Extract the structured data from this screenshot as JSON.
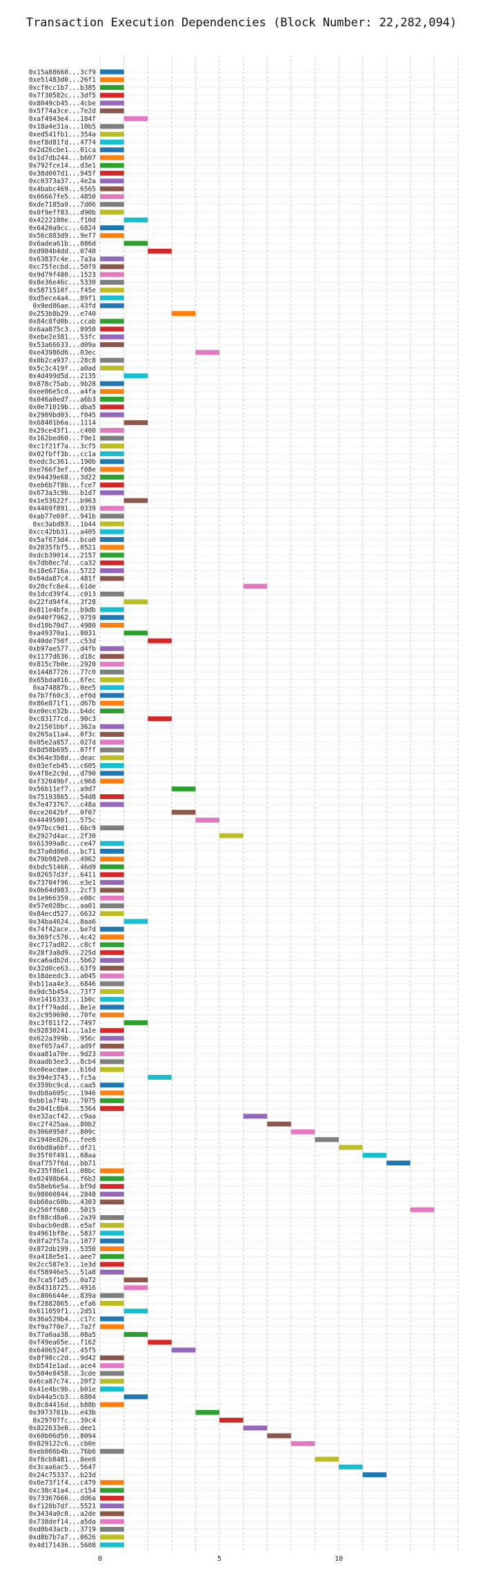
{
  "chart_data": {
    "type": "bar",
    "title": "Transaction Execution Dependencies (Block Number: 22,282,094)",
    "xlabel": "",
    "ylabel": "",
    "xlim": [
      -1,
      15
    ],
    "xticks": [
      0,
      5,
      10
    ],
    "grid": true,
    "legend": "none",
    "palette": [
      "#1f77b4",
      "#ff7f0e",
      "#2ca02c",
      "#d62728",
      "#9467bd",
      "#8c564b",
      "#e377c2",
      "#7f7f7f",
      "#bcbd22",
      "#17becf"
    ],
    "rows": [
      {
        "label": "0x15a88660...3cf9",
        "start": 0,
        "end": 1
      },
      {
        "label": "0xe51483d0...26f1",
        "start": 0,
        "end": 1
      },
      {
        "label": "0xcf0cc1b7...b385",
        "start": 0,
        "end": 1
      },
      {
        "label": "0x7f30582c...3df5",
        "start": 0,
        "end": 1
      },
      {
        "label": "0x8049cb45...4cbe",
        "start": 0,
        "end": 1
      },
      {
        "label": "0x5f74a3ce...7e2d",
        "start": 0,
        "end": 1
      },
      {
        "label": "0xaf4943e4...184f",
        "start": 1,
        "end": 2
      },
      {
        "label": "0x18a4e31a...10b5",
        "start": 0,
        "end": 1
      },
      {
        "label": "0xed541fb1...354a",
        "start": 0,
        "end": 1
      },
      {
        "label": "0xef8d81fd...4774",
        "start": 0,
        "end": 1
      },
      {
        "label": "0x2d26cbe1...01ca",
        "start": 0,
        "end": 1
      },
      {
        "label": "0x1d7db244...b607",
        "start": 0,
        "end": 1
      },
      {
        "label": "0x792fce14...d3e1",
        "start": 0,
        "end": 1
      },
      {
        "label": "0x38d007d1...945f",
        "start": 0,
        "end": 1
      },
      {
        "label": "0xc0373a37...4e2a",
        "start": 0,
        "end": 1
      },
      {
        "label": "0x4babc469...6565",
        "start": 0,
        "end": 1
      },
      {
        "label": "0x66667fe5...4850",
        "start": 0,
        "end": 1
      },
      {
        "label": "0xde7185a9...7d06",
        "start": 0,
        "end": 1
      },
      {
        "label": "0x0f9eff83...d90b",
        "start": 0,
        "end": 1
      },
      {
        "label": "0x4222180e...f10d",
        "start": 1,
        "end": 2
      },
      {
        "label": "0x6420a9cc...6824",
        "start": 0,
        "end": 1
      },
      {
        "label": "0x56c883d9...9ef7",
        "start": 0,
        "end": 1
      },
      {
        "label": "0x6adea61b...086d",
        "start": 1,
        "end": 2
      },
      {
        "label": "0xd984b4dd...0740",
        "start": 2,
        "end": 3
      },
      {
        "label": "0x63837c4e...7a3a",
        "start": 0,
        "end": 1
      },
      {
        "label": "0xc75fecbd...50f9",
        "start": 0,
        "end": 1
      },
      {
        "label": "0x9d79f480...1523",
        "start": 0,
        "end": 1
      },
      {
        "label": "0x8e36e46c...5330",
        "start": 0,
        "end": 1
      },
      {
        "label": "0x5871510f...f45e",
        "start": 0,
        "end": 1
      },
      {
        "label": "0xd5ece4a4...89f1",
        "start": 0,
        "end": 1
      },
      {
        "label": "0x9ed86ae...43fd",
        "start": 0,
        "end": 1
      },
      {
        "label": "0x253b8b29...e740",
        "start": 3,
        "end": 4
      },
      {
        "label": "0x84c8fd0b...ccab",
        "start": 0,
        "end": 1
      },
      {
        "label": "0x6aa875c3...8950",
        "start": 0,
        "end": 1
      },
      {
        "label": "0xebe2e381...53fc",
        "start": 0,
        "end": 1
      },
      {
        "label": "0x53a66633...d09a",
        "start": 0,
        "end": 1
      },
      {
        "label": "0xe43986d6...03ec",
        "start": 4,
        "end": 5
      },
      {
        "label": "0x0b2ca937...28c8",
        "start": 0,
        "end": 1
      },
      {
        "label": "0x5c3c419f...a0ad",
        "start": 0,
        "end": 1
      },
      {
        "label": "0x4d499d5d...2135",
        "start": 1,
        "end": 2
      },
      {
        "label": "0x878c75ab...9b28",
        "start": 0,
        "end": 1
      },
      {
        "label": "0xee06e5cd...a4fa",
        "start": 0,
        "end": 1
      },
      {
        "label": "0x046a0ed7...a6b3",
        "start": 0,
        "end": 1
      },
      {
        "label": "0x0e71019b...dba5",
        "start": 0,
        "end": 1
      },
      {
        "label": "0x2909bd03...f045",
        "start": 0,
        "end": 1
      },
      {
        "label": "0x68401b6a...1114",
        "start": 1,
        "end": 2
      },
      {
        "label": "0x29ce43f1...c400",
        "start": 0,
        "end": 1
      },
      {
        "label": "0x162bed60...f9e1",
        "start": 0,
        "end": 1
      },
      {
        "label": "0xc1f21f7a...3cf5",
        "start": 0,
        "end": 1
      },
      {
        "label": "0x02fbff3b...cc1a",
        "start": 0,
        "end": 1
      },
      {
        "label": "0xedc3c361...190b",
        "start": 0,
        "end": 1
      },
      {
        "label": "0xe766f3ef...f08e",
        "start": 0,
        "end": 1
      },
      {
        "label": "0x94439e68...3d22",
        "start": 0,
        "end": 1
      },
      {
        "label": "0xeb6b7f8b...fce7",
        "start": 0,
        "end": 1
      },
      {
        "label": "0x673a3c9b...b1d7",
        "start": 0,
        "end": 1
      },
      {
        "label": "0x1e53622f...b963",
        "start": 1,
        "end": 2
      },
      {
        "label": "0x4469f891...0339",
        "start": 0,
        "end": 1
      },
      {
        "label": "0xab77e69f...941b",
        "start": 0,
        "end": 1
      },
      {
        "label": "0xc3abd83...1b44",
        "start": 0,
        "end": 1
      },
      {
        "label": "0xcc42bb31...a405",
        "start": 0,
        "end": 1
      },
      {
        "label": "0x5af673d4...bca0",
        "start": 0,
        "end": 1
      },
      {
        "label": "0x2035fbf5...0521",
        "start": 0,
        "end": 1
      },
      {
        "label": "0xdcb39014...2157",
        "start": 0,
        "end": 1
      },
      {
        "label": "0x7db8ec7d...ca32",
        "start": 0,
        "end": 1
      },
      {
        "label": "0x18e6716a...5722",
        "start": 0,
        "end": 1
      },
      {
        "label": "0x64da87c4...481f",
        "start": 0,
        "end": 1
      },
      {
        "label": "0x20cfc8e4...61de",
        "start": 6,
        "end": 7
      },
      {
        "label": "0x1dcd39f4...c013",
        "start": 0,
        "end": 1
      },
      {
        "label": "0x22fd94f4...3f28",
        "start": 1,
        "end": 2
      },
      {
        "label": "0x811e4bfe...b9db",
        "start": 0,
        "end": 1
      },
      {
        "label": "0x940f7962...9759",
        "start": 0,
        "end": 1
      },
      {
        "label": "0xd10b70d7...4980",
        "start": 0,
        "end": 1
      },
      {
        "label": "0xa49370a1...8031",
        "start": 1,
        "end": 2
      },
      {
        "label": "0x40de750f...c53d",
        "start": 2,
        "end": 3
      },
      {
        "label": "0xb97ae577...d4fb",
        "start": 0,
        "end": 1
      },
      {
        "label": "0x1177d636...d18c",
        "start": 0,
        "end": 1
      },
      {
        "label": "0x815c7b0e...2920",
        "start": 0,
        "end": 1
      },
      {
        "label": "0x14487726...77c0",
        "start": 0,
        "end": 1
      },
      {
        "label": "0x65bda016...6fec",
        "start": 0,
        "end": 1
      },
      {
        "label": "0xa74887b...0ee5",
        "start": 0,
        "end": 1
      },
      {
        "label": "0x7b7f60c3...ef0d",
        "start": 0,
        "end": 1
      },
      {
        "label": "0x86e871f1...d67b",
        "start": 0,
        "end": 1
      },
      {
        "label": "0xe0ece32b...b4dc",
        "start": 0,
        "end": 1
      },
      {
        "label": "0xc83177cd...90c3",
        "start": 2,
        "end": 3
      },
      {
        "label": "0x21501bbf...362a",
        "start": 0,
        "end": 1
      },
      {
        "label": "0x265a11a4...0f3c",
        "start": 0,
        "end": 1
      },
      {
        "label": "0x05e2a857...027d",
        "start": 0,
        "end": 1
      },
      {
        "label": "0x8d58b695...07ff",
        "start": 0,
        "end": 1
      },
      {
        "label": "0x364e3b8d...deac",
        "start": 0,
        "end": 1
      },
      {
        "label": "0x03efeb45...c605",
        "start": 0,
        "end": 1
      },
      {
        "label": "0x4f8e2c9d...d790",
        "start": 0,
        "end": 1
      },
      {
        "label": "0xf32049bf...c968",
        "start": 0,
        "end": 1
      },
      {
        "label": "0x56b11ef7...a9d7",
        "start": 3,
        "end": 4
      },
      {
        "label": "0x75193865...54d8",
        "start": 0,
        "end": 1
      },
      {
        "label": "0x7e473767...c48a",
        "start": 0,
        "end": 1
      },
      {
        "label": "0xce2042bf...0f07",
        "start": 3,
        "end": 4
      },
      {
        "label": "0x44495001...575c",
        "start": 4,
        "end": 5
      },
      {
        "label": "0x97bcc9d1...6bc9",
        "start": 0,
        "end": 1
      },
      {
        "label": "0x2927d4ac...2f30",
        "start": 5,
        "end": 6
      },
      {
        "label": "0x61399a8c...ce47",
        "start": 0,
        "end": 1
      },
      {
        "label": "0x37a0d06d...bc71",
        "start": 0,
        "end": 1
      },
      {
        "label": "0x79b982e0...4962",
        "start": 0,
        "end": 1
      },
      {
        "label": "0xbdc51466...46d9",
        "start": 0,
        "end": 1
      },
      {
        "label": "0x82657d3f...6411",
        "start": 0,
        "end": 1
      },
      {
        "label": "0x73704f96...e3e1",
        "start": 0,
        "end": 1
      },
      {
        "label": "0x0b64d983...2cf3",
        "start": 0,
        "end": 1
      },
      {
        "label": "0x1e966359...e08c",
        "start": 0,
        "end": 1
      },
      {
        "label": "0x57e028bc...aa01",
        "start": 0,
        "end": 1
      },
      {
        "label": "0x84ecd527...6632",
        "start": 0,
        "end": 1
      },
      {
        "label": "0x34ba4624...8aa6",
        "start": 1,
        "end": 2
      },
      {
        "label": "0x74f42ace...be7d",
        "start": 0,
        "end": 1
      },
      {
        "label": "0x369fc570...4c42",
        "start": 0,
        "end": 1
      },
      {
        "label": "0xc717ad82...c8cf",
        "start": 0,
        "end": 1
      },
      {
        "label": "0x28f3a8d9...225d",
        "start": 0,
        "end": 1
      },
      {
        "label": "0xca6adb2d...5b62",
        "start": 0,
        "end": 1
      },
      {
        "label": "0x32d0ce63...63f9",
        "start": 0,
        "end": 1
      },
      {
        "label": "0x18deedc3...a045",
        "start": 0,
        "end": 1
      },
      {
        "label": "0xb11aa4e3...6846",
        "start": 0,
        "end": 1
      },
      {
        "label": "0x9dc5b454...73f7",
        "start": 0,
        "end": 1
      },
      {
        "label": "0xe1416333...1b0c",
        "start": 0,
        "end": 1
      },
      {
        "label": "0x1ff79add...8e1e",
        "start": 0,
        "end": 1
      },
      {
        "label": "0x2c959690...70fe",
        "start": 0,
        "end": 1
      },
      {
        "label": "0xc3f811f2...7497",
        "start": 1,
        "end": 2
      },
      {
        "label": "0x92830241...1a1e",
        "start": 0,
        "end": 1
      },
      {
        "label": "0x622a399b...956c",
        "start": 0,
        "end": 1
      },
      {
        "label": "0xef057a47...ad9f",
        "start": 0,
        "end": 1
      },
      {
        "label": "0xaa81a70e...9d23",
        "start": 0,
        "end": 1
      },
      {
        "label": "0xaadb3ee3...8cb4",
        "start": 0,
        "end": 1
      },
      {
        "label": "0xe0eacdae...b16d",
        "start": 0,
        "end": 1
      },
      {
        "label": "0x394e3743...fc5a",
        "start": 2,
        "end": 3
      },
      {
        "label": "0x359bc9cd...caa5",
        "start": 0,
        "end": 1
      },
      {
        "label": "0xdb8a605c...1946",
        "start": 0,
        "end": 1
      },
      {
        "label": "0xbb1a7f4b...7075",
        "start": 0,
        "end": 1
      },
      {
        "label": "0x2041c8b4...5364",
        "start": 0,
        "end": 1
      },
      {
        "label": "0xe32acf42...c9aa",
        "start": 6,
        "end": 7
      },
      {
        "label": "0xc2f425aa...80b2",
        "start": 7,
        "end": 8
      },
      {
        "label": "0x3060950f...809c",
        "start": 8,
        "end": 9
      },
      {
        "label": "0x1940e826...fee8",
        "start": 9,
        "end": 10
      },
      {
        "label": "0x6bd8a6bf...df21",
        "start": 10,
        "end": 11
      },
      {
        "label": "0x35f0f491...68aa",
        "start": 11,
        "end": 12
      },
      {
        "label": "0xaf757f6d...bb71",
        "start": 12,
        "end": 13
      },
      {
        "label": "0x235f86e1...08bc",
        "start": 0,
        "end": 1
      },
      {
        "label": "0x02498b64...f6b2",
        "start": 0,
        "end": 1
      },
      {
        "label": "0x58eb6e5a...bf9d",
        "start": 0,
        "end": 1
      },
      {
        "label": "0x98000844...2848",
        "start": 0,
        "end": 1
      },
      {
        "label": "0xb60ac60b...4303",
        "start": 0,
        "end": 1
      },
      {
        "label": "0x250ff680...5015",
        "start": 13,
        "end": 14
      },
      {
        "label": "0xf88cd8a6...2a39",
        "start": 0,
        "end": 1
      },
      {
        "label": "0xbacb0ed8...e5af",
        "start": 0,
        "end": 1
      },
      {
        "label": "0x4961bf8e...5837",
        "start": 0,
        "end": 1
      },
      {
        "label": "0x8fa2f57a...1077",
        "start": 0,
        "end": 1
      },
      {
        "label": "0x872db199...5350",
        "start": 0,
        "end": 1
      },
      {
        "label": "0xa418e5e1...aee7",
        "start": 0,
        "end": 1
      },
      {
        "label": "0x2cc587e3...1e3d",
        "start": 0,
        "end": 1
      },
      {
        "label": "0xf58946e5...51a8",
        "start": 0,
        "end": 1
      },
      {
        "label": "0x7ca5f1d5...0a72",
        "start": 1,
        "end": 2
      },
      {
        "label": "0x84318725...4916",
        "start": 1,
        "end": 2
      },
      {
        "label": "0xc806644e...839a",
        "start": 0,
        "end": 1
      },
      {
        "label": "0xf2882865...efa6",
        "start": 0,
        "end": 1
      },
      {
        "label": "0x611059f1...2d51",
        "start": 1,
        "end": 2
      },
      {
        "label": "0x36a529b4...c17c",
        "start": 0,
        "end": 1
      },
      {
        "label": "0xf9a7f0e7...7a2f",
        "start": 0,
        "end": 1
      },
      {
        "label": "0x77a0aa38...08a5",
        "start": 1,
        "end": 2
      },
      {
        "label": "0xf49ea65e...f162",
        "start": 2,
        "end": 3
      },
      {
        "label": "0x6406524f...45f5",
        "start": 3,
        "end": 4
      },
      {
        "label": "0x8f98cc2d...9d42",
        "start": 0,
        "end": 1
      },
      {
        "label": "0xb541e1ad...ace4",
        "start": 0,
        "end": 1
      },
      {
        "label": "0x504e8458...3cde",
        "start": 0,
        "end": 1
      },
      {
        "label": "0x6ca87c74...20f2",
        "start": 0,
        "end": 1
      },
      {
        "label": "0x41e4bc9b...b01e",
        "start": 0,
        "end": 1
      },
      {
        "label": "0xb44a5cb3...6804",
        "start": 1,
        "end": 2
      },
      {
        "label": "0x8c84416d...b88b",
        "start": 0,
        "end": 1
      },
      {
        "label": "0x3973781b...e43b",
        "start": 4,
        "end": 5
      },
      {
        "label": "0x29707fc...39c4",
        "start": 5,
        "end": 6
      },
      {
        "label": "0x822633e0...dee1",
        "start": 6,
        "end": 7
      },
      {
        "label": "0x60b06d50...8094",
        "start": 7,
        "end": 8
      },
      {
        "label": "0x829122c6...cb0e",
        "start": 8,
        "end": 9
      },
      {
        "label": "0xeb006b4b...76b6",
        "start": 0,
        "end": 1
      },
      {
        "label": "0xf8cb8481...8ee0",
        "start": 9,
        "end": 10
      },
      {
        "label": "0x3caa6ac5...5647",
        "start": 10,
        "end": 11
      },
      {
        "label": "0x24c75337...b23d",
        "start": 11,
        "end": 12
      },
      {
        "label": "0x6e73f1f4...c479",
        "start": 0,
        "end": 1
      },
      {
        "label": "0xc38c41a4...c154",
        "start": 0,
        "end": 1
      },
      {
        "label": "0x73367666...dd6a",
        "start": 0,
        "end": 1
      },
      {
        "label": "0xf128b7df...5521",
        "start": 0,
        "end": 1
      },
      {
        "label": "0x3434a0c8...a2de",
        "start": 0,
        "end": 1
      },
      {
        "label": "0x738def14...a5da",
        "start": 0,
        "end": 1
      },
      {
        "label": "0xd0b43acb...3719",
        "start": 0,
        "end": 1
      },
      {
        "label": "0xd8b7b7a7...0626",
        "start": 0,
        "end": 1
      },
      {
        "label": "0x4d171436...5608",
        "start": 0,
        "end": 1
      }
    ]
  }
}
